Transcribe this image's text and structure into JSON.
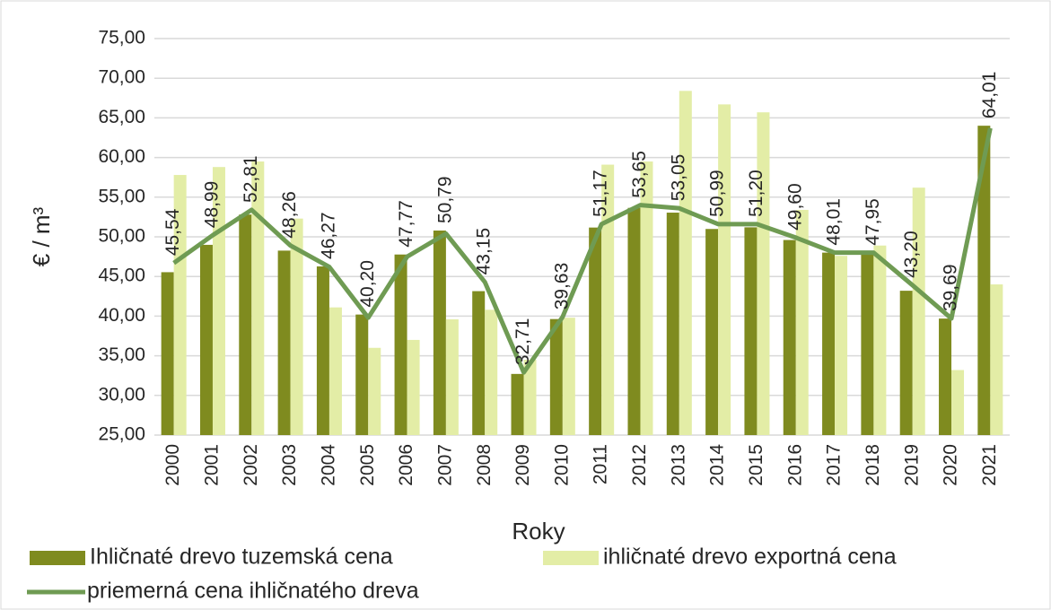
{
  "chart_data": {
    "type": "bar",
    "x_label": "Roky",
    "y_label": "€ / m³",
    "categories": [
      "2000",
      "2001",
      "2002",
      "2003",
      "2004",
      "2005",
      "2006",
      "2007",
      "2008",
      "2009",
      "2010",
      "2011",
      "2012",
      "2013",
      "2014",
      "2015",
      "2016",
      "2017",
      "2018",
      "2019",
      "2020",
      "2021"
    ],
    "series": [
      {
        "name": "Ihličnaté drevo tuzemská cena",
        "color": "#7f8b1f",
        "type": "bar",
        "values": [
          45.54,
          48.99,
          52.81,
          48.26,
          46.27,
          40.2,
          47.77,
          50.79,
          43.15,
          32.71,
          39.63,
          51.17,
          53.65,
          53.05,
          50.99,
          51.2,
          49.6,
          48.01,
          47.95,
          43.2,
          39.69,
          64.01
        ],
        "value_labels": [
          "45,54",
          "48,99",
          "52,81",
          "48,26",
          "46,27",
          "40,20",
          "47,77",
          "50,79",
          "43,15",
          "32,71",
          "39,63",
          "51,17",
          "53,65",
          "53,05",
          "50,99",
          "51,20",
          "49,60",
          "48,01",
          "47,95",
          "43,20",
          "39,69",
          "64,01"
        ]
      },
      {
        "name": "ihličnaté drevo exportná cena",
        "color": "#e3eda6",
        "type": "bar",
        "values": [
          57.8,
          58.8,
          59.5,
          52.3,
          41.1,
          36.0,
          37.0,
          39.6,
          40.8,
          34.5,
          39.8,
          59.1,
          59.5,
          68.4,
          66.7,
          65.7,
          53.4,
          47.6,
          48.9,
          56.2,
          33.2,
          44.0
        ]
      },
      {
        "name": "priemerná cena ihličnatého dreva",
        "color": "#6f9b53",
        "type": "line",
        "values": [
          46.7,
          50.2,
          53.4,
          48.9,
          46.2,
          39.8,
          47.5,
          50.4,
          44.3,
          32.9,
          39.9,
          51.6,
          54.0,
          53.6,
          51.6,
          51.6,
          49.9,
          48.0,
          48.0,
          43.9,
          39.7,
          63.7
        ]
      }
    ],
    "ylim": [
      25,
      75
    ],
    "yticks": [
      {
        "value": 25,
        "label": "25,00"
      },
      {
        "value": 30,
        "label": "30,00"
      },
      {
        "value": 35,
        "label": "35,00"
      },
      {
        "value": 40,
        "label": "40,00"
      },
      {
        "value": 45,
        "label": "45,00"
      },
      {
        "value": 50,
        "label": "50,00"
      },
      {
        "value": 55,
        "label": "55,00"
      },
      {
        "value": 60,
        "label": "60,00"
      },
      {
        "value": 65,
        "label": "65,00"
      },
      {
        "value": 70,
        "label": "70,00"
      },
      {
        "value": 75,
        "label": "75,00"
      }
    ],
    "grid": true
  }
}
